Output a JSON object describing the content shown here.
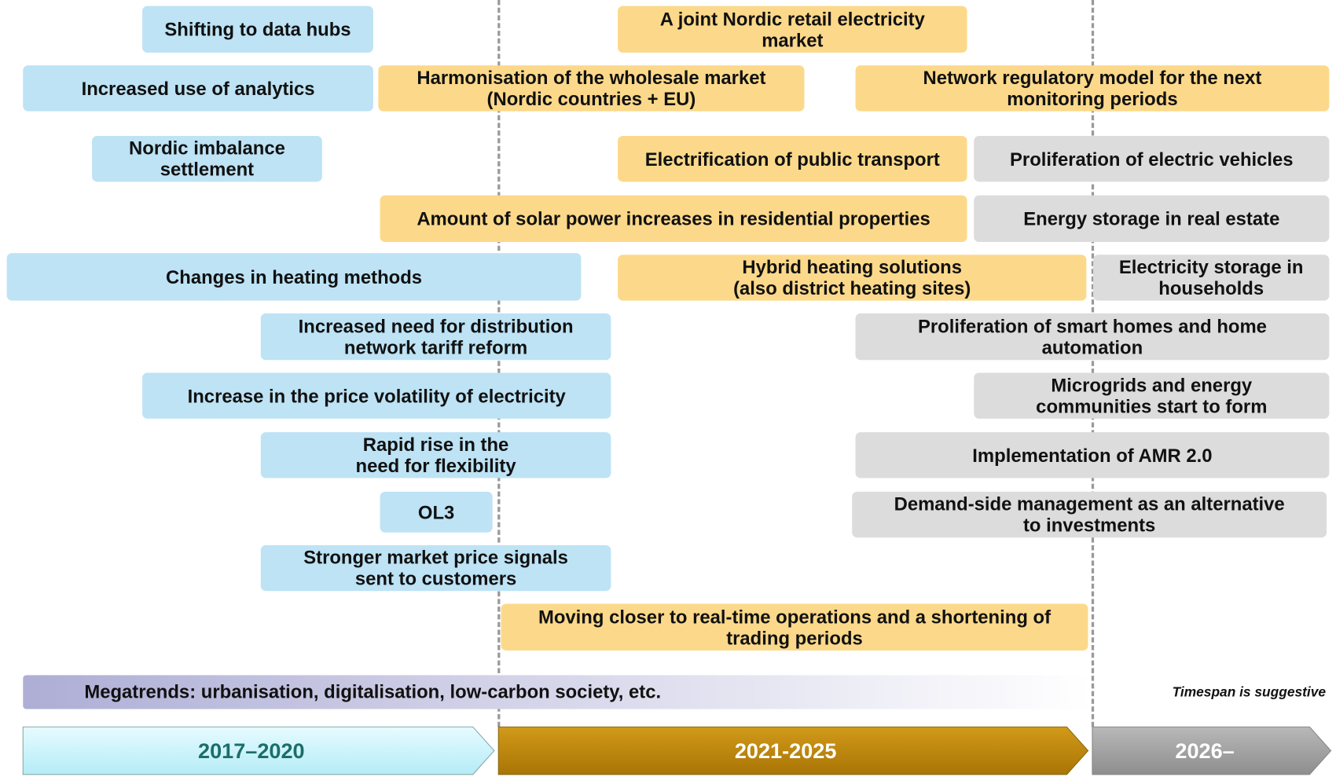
{
  "items": [
    "Shifting to data hubs",
    "Increased use of analytics",
    "Nordic imbalance\nsettlement",
    "Changes in heating methods",
    "Increased need for distribution\nnetwork tariff reform",
    "Increase in the price volatility of electricity",
    "Rapid rise in the\nneed for flexibility",
    "OL3",
    "Stronger market price signals\nsent to customers",
    "A joint Nordic retail electricity\nmarket",
    "Harmonisation of the wholesale market\n(Nordic countries + EU)",
    "Network regulatory model for the next\nmonitoring periods",
    "Electrification of public transport",
    "Amount of solar power increases in residential properties",
    "Hybrid heating solutions\n(also district heating sites)",
    "Moving closer to real-time operations and a shortening of\ntrading periods",
    "Proliferation of electric vehicles",
    "Energy storage in real estate",
    "Electricity storage in\nhouseholds",
    "Proliferation of smart homes and home\nautomation",
    "Microgrids and energy\ncommunities start to form",
    "Implementation of AMR 2.0",
    "Demand-side management as an alternative\nto investments"
  ],
  "megatrends": "Megatrends: urbanisation, digitalisation, low-carbon society, etc.",
  "note": "Timespan is suggestive",
  "periods": [
    "2017–2020",
    "2021-2025",
    "2026–"
  ]
}
